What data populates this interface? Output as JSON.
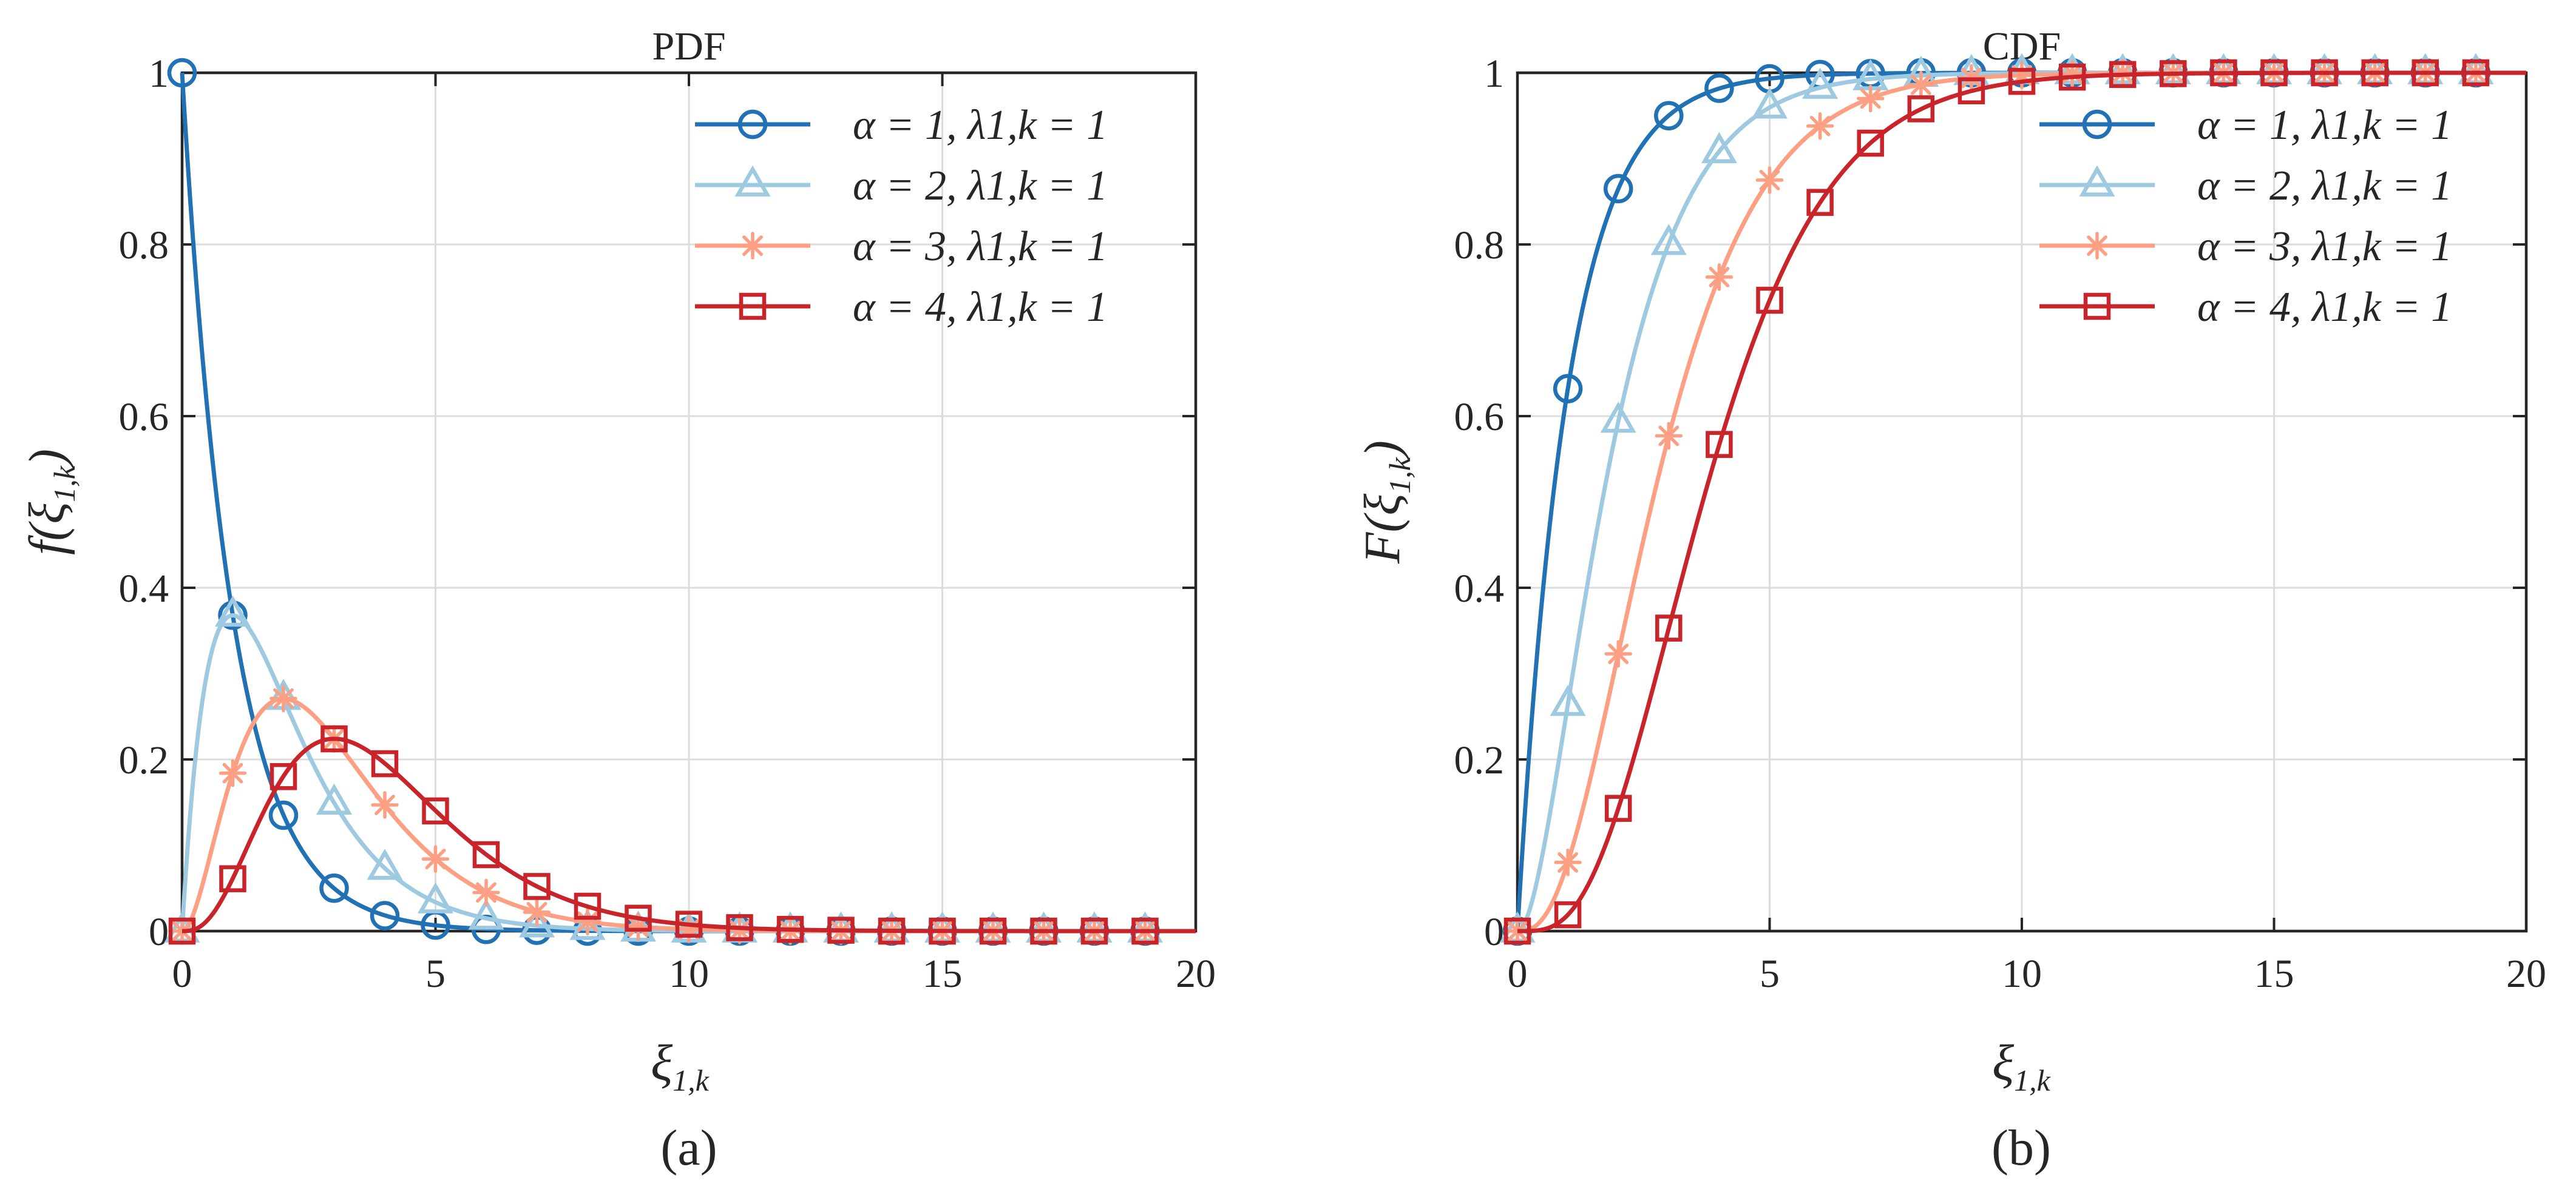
{
  "colors": {
    "alpha1": "#2171b5",
    "alpha2": "#9ecae1",
    "alpha3": "#fc9f82",
    "alpha4": "#c9242a",
    "grid": "#dcdcdc",
    "axis": "#262626"
  },
  "chart_data": [
    {
      "type": "line",
      "title": "PDF",
      "caption": "(a)",
      "xlabel": "ξ",
      "xlabel_sub": "1,k",
      "ylabel": "f(ξ",
      "ylabel_sub": "1,k",
      "ylabel_close": ")",
      "xlim": [
        0,
        20
      ],
      "ylim": [
        0,
        1
      ],
      "xticks": [
        0,
        5,
        10,
        15,
        20
      ],
      "yticks": [
        0,
        0.2,
        0.4,
        0.6,
        0.8,
        1
      ],
      "xtick_labels": [
        "0",
        "5",
        "10",
        "15",
        "20"
      ],
      "ytick_labels": [
        "0",
        "0.2",
        "0.4",
        "0.6",
        "0.8",
        "1"
      ],
      "grid": true,
      "legend_position": "top-right",
      "function": "pdf",
      "marker_x": [
        0,
        1,
        2,
        3,
        4,
        5,
        6,
        7,
        8,
        9,
        10,
        11,
        12,
        13,
        14,
        15,
        16,
        17,
        18,
        19
      ],
      "series": [
        {
          "name": "α = 1, λ1,k = 1",
          "alpha": 1,
          "lambda": 1,
          "marker": "circle",
          "color_key": "alpha1",
          "values": [
            1,
            0.368,
            0.135,
            0.05,
            0.018,
            0.007,
            0.002,
            0.001,
            0,
            0,
            0,
            0,
            0,
            0,
            0,
            0,
            0,
            0,
            0,
            0
          ]
        },
        {
          "name": "α = 2, λ1,k = 1",
          "alpha": 2,
          "lambda": 1,
          "marker": "triangle",
          "color_key": "alpha2",
          "values": [
            0,
            0.368,
            0.271,
            0.149,
            0.073,
            0.034,
            0.015,
            0.006,
            0.003,
            0.001,
            0,
            0,
            0,
            0,
            0,
            0,
            0,
            0,
            0,
            0
          ]
        },
        {
          "name": "α = 3, λ1,k = 1",
          "alpha": 3,
          "lambda": 1,
          "marker": "asterisk",
          "color_key": "alpha3",
          "values": [
            0,
            0.184,
            0.271,
            0.224,
            0.147,
            0.084,
            0.045,
            0.022,
            0.011,
            0.005,
            0.002,
            0.001,
            0,
            0,
            0,
            0,
            0,
            0,
            0,
            0
          ]
        },
        {
          "name": "α = 4, λ1,k = 1",
          "alpha": 4,
          "lambda": 1,
          "marker": "square",
          "color_key": "alpha4",
          "values": [
            0,
            0.061,
            0.18,
            0.224,
            0.195,
            0.14,
            0.089,
            0.052,
            0.029,
            0.015,
            0.008,
            0.004,
            0.002,
            0.001,
            0,
            0,
            0,
            0,
            0,
            0
          ]
        }
      ]
    },
    {
      "type": "line",
      "title": "CDF",
      "caption": "(b)",
      "xlabel": "ξ",
      "xlabel_sub": "1,k",
      "ylabel": "F(ξ",
      "ylabel_sub": "1,k",
      "ylabel_close": ")",
      "xlim": [
        0,
        20
      ],
      "ylim": [
        0,
        1
      ],
      "xticks": [
        0,
        5,
        10,
        15,
        20
      ],
      "yticks": [
        0,
        0.2,
        0.4,
        0.6,
        0.8,
        1
      ],
      "xtick_labels": [
        "0",
        "5",
        "10",
        "15",
        "20"
      ],
      "ytick_labels": [
        "0",
        "0.2",
        "0.4",
        "0.6",
        "0.8",
        "1"
      ],
      "grid": true,
      "legend_position": "top-right",
      "function": "cdf",
      "marker_x": [
        0,
        1,
        2,
        3,
        4,
        5,
        6,
        7,
        8,
        9,
        10,
        11,
        12,
        13,
        14,
        15,
        16,
        17,
        18,
        19
      ],
      "series": [
        {
          "name": "α = 1, λ1,k = 1",
          "alpha": 1,
          "lambda": 1,
          "marker": "circle",
          "color_key": "alpha1",
          "values": [
            0,
            0.632,
            0.865,
            0.95,
            0.982,
            0.993,
            0.998,
            0.999,
            1,
            1,
            1,
            1,
            1,
            1,
            1,
            1,
            1,
            1,
            1,
            1
          ]
        },
        {
          "name": "α = 2, λ1,k = 1",
          "alpha": 2,
          "lambda": 1,
          "marker": "triangle",
          "color_key": "alpha2",
          "values": [
            0,
            0.264,
            0.594,
            0.801,
            0.908,
            0.96,
            0.983,
            0.993,
            0.997,
            0.999,
            1,
            1,
            1,
            1,
            1,
            1,
            1,
            1,
            1,
            1
          ]
        },
        {
          "name": "α = 3, λ1,k = 1",
          "alpha": 3,
          "lambda": 1,
          "marker": "asterisk",
          "color_key": "alpha3",
          "values": [
            0,
            0.08,
            0.323,
            0.577,
            0.762,
            0.875,
            0.938,
            0.97,
            0.986,
            0.994,
            0.997,
            0.999,
            1,
            1,
            1,
            1,
            1,
            1,
            1,
            1
          ]
        },
        {
          "name": "α = 4, λ1,k = 1",
          "alpha": 4,
          "lambda": 1,
          "marker": "square",
          "color_key": "alpha4",
          "values": [
            0,
            0.019,
            0.143,
            0.353,
            0.567,
            0.735,
            0.849,
            0.918,
            0.958,
            0.979,
            0.99,
            0.995,
            0.998,
            0.999,
            1,
            1,
            1,
            1,
            1,
            1
          ]
        }
      ]
    }
  ]
}
